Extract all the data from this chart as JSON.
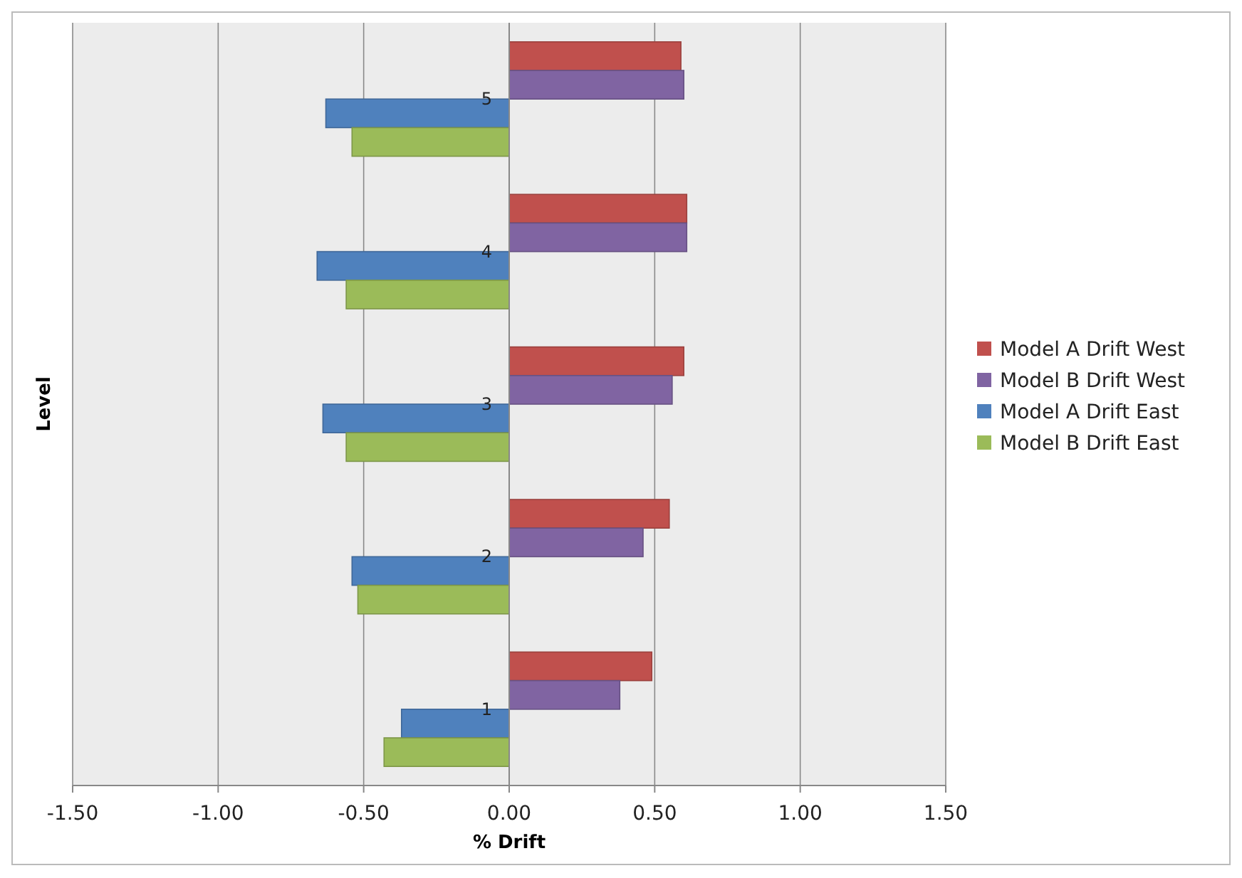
{
  "chart_data": {
    "type": "bar",
    "orientation": "horizontal",
    "xlabel": "% Drift",
    "ylabel": "Level",
    "categories": [
      "5",
      "4",
      "3",
      "2",
      "1"
    ],
    "series": [
      {
        "name": "Model A Drift West",
        "color": "#c0504d",
        "values": [
          0.59,
          0.61,
          0.6,
          0.55,
          0.49
        ]
      },
      {
        "name": "Model B Drift West",
        "color": "#8064a2",
        "values": [
          0.6,
          0.61,
          0.56,
          0.46,
          0.38
        ]
      },
      {
        "name": "Model A Drift East",
        "color": "#4f81bd",
        "values": [
          -0.63,
          -0.66,
          -0.64,
          -0.54,
          -0.37
        ]
      },
      {
        "name": "Model B Drift East",
        "color": "#9bbb59",
        "values": [
          -0.54,
          -0.56,
          -0.56,
          -0.52,
          -0.43
        ]
      }
    ],
    "xlim": [
      -1.5,
      1.5
    ],
    "xticks": [
      {
        "value": -1.5,
        "label": "-1.50"
      },
      {
        "value": -1,
        "label": "-1.00"
      },
      {
        "value": -0.5,
        "label": "-0.50"
      },
      {
        "value": 0,
        "label": "0.00"
      },
      {
        "value": 0.5,
        "label": "0.50"
      },
      {
        "value": 1,
        "label": "1.00"
      },
      {
        "value": 1.5,
        "label": "1.50"
      }
    ],
    "grid": "x",
    "legend": "right"
  }
}
